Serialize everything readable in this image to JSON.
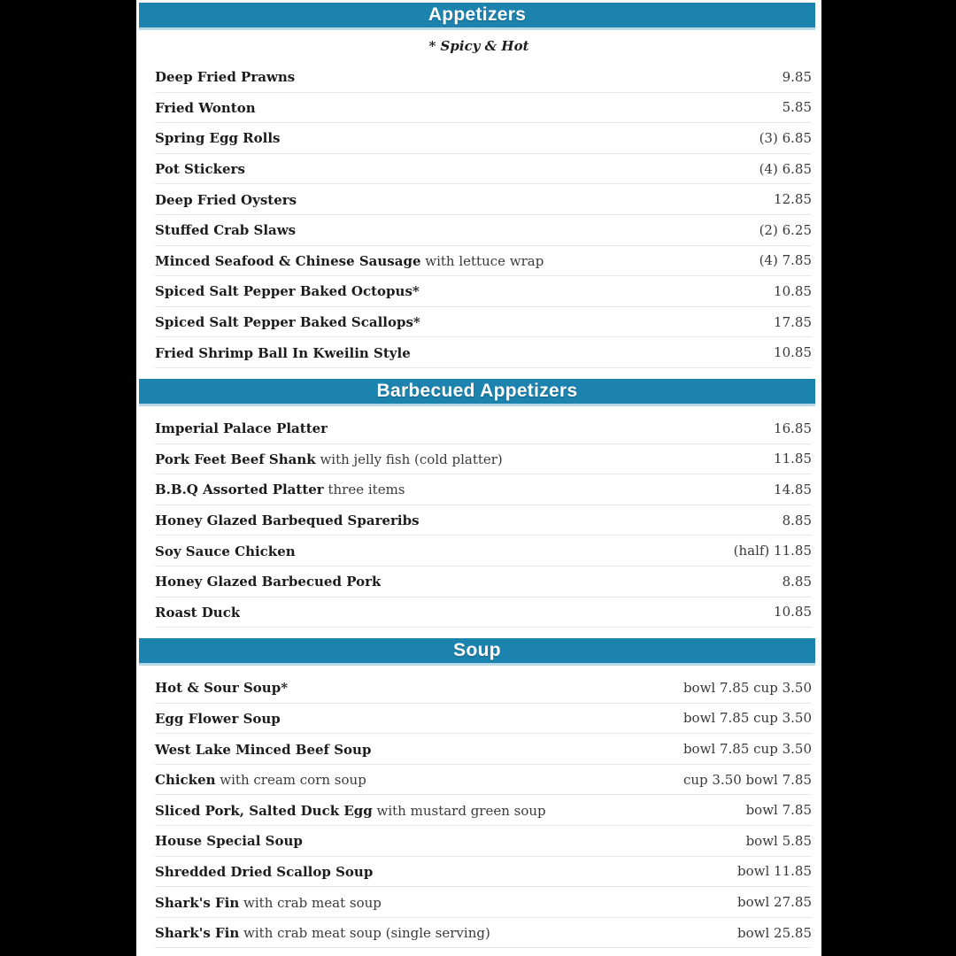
{
  "page": {
    "note": "* Spicy & Hot",
    "colors": {
      "background": "#000000",
      "panel": "#ffffff",
      "section_header_bg": "#1c82ae",
      "section_header_border": "#b9d8e5",
      "section_header_text": "#ffffff",
      "item_name": "#1c1c1c",
      "item_desc": "#3a3a3a",
      "item_price": "#383838",
      "divider": "#e2e9ed"
    }
  },
  "sections": [
    {
      "title": "Appetizers",
      "show_note": true,
      "items": [
        {
          "name": "Deep Fried Prawns",
          "desc": "",
          "price": "9.85"
        },
        {
          "name": "Fried Wonton",
          "desc": "",
          "price": "5.85"
        },
        {
          "name": "Spring Egg Rolls",
          "desc": "",
          "price": "(3) 6.85"
        },
        {
          "name": "Pot Stickers",
          "desc": "",
          "price": "(4) 6.85"
        },
        {
          "name": "Deep Fried Oysters",
          "desc": "",
          "price": "12.85"
        },
        {
          "name": "Stuffed Crab Slaws",
          "desc": "",
          "price": "(2) 6.25"
        },
        {
          "name": "Minced Seafood & Chinese Sausage",
          "desc": "with lettuce wrap",
          "price": "(4) 7.85"
        },
        {
          "name": "Spiced Salt Pepper Baked Octopus*",
          "desc": "",
          "price": "10.85"
        },
        {
          "name": "Spiced Salt Pepper Baked Scallops*",
          "desc": "",
          "price": "17.85"
        },
        {
          "name": "Fried Shrimp Ball In Kweilin Style",
          "desc": "",
          "price": "10.85"
        }
      ]
    },
    {
      "title": "Barbecued Appetizers",
      "show_note": false,
      "items": [
        {
          "name": "Imperial Palace Platter",
          "desc": "",
          "price": "16.85"
        },
        {
          "name": "Pork Feet Beef Shank",
          "desc": "with jelly fish (cold platter)",
          "price": "11.85"
        },
        {
          "name": "B.B.Q Assorted Platter",
          "desc": "three items",
          "price": "14.85"
        },
        {
          "name": "Honey Glazed Barbequed Spareribs",
          "desc": "",
          "price": "8.85"
        },
        {
          "name": "Soy Sauce Chicken",
          "desc": "",
          "price": "(half) 11.85"
        },
        {
          "name": "Honey Glazed Barbecued Pork",
          "desc": "",
          "price": "8.85"
        },
        {
          "name": "Roast Duck",
          "desc": "",
          "price": "10.85"
        }
      ]
    },
    {
      "title": "Soup",
      "show_note": false,
      "items": [
        {
          "name": "Hot & Sour Soup*",
          "desc": "",
          "price": "bowl 7.85 cup 3.50"
        },
        {
          "name": "Egg Flower Soup",
          "desc": "",
          "price": "bowl 7.85 cup 3.50"
        },
        {
          "name": "West Lake Minced Beef Soup",
          "desc": "",
          "price": "bowl 7.85 cup 3.50"
        },
        {
          "name": "Chicken",
          "desc": "with cream corn soup",
          "price": "cup 3.50 bowl 7.85"
        },
        {
          "name": "Sliced Pork, Salted Duck Egg",
          "desc": "with mustard green soup",
          "price": "bowl 7.85"
        },
        {
          "name": "House Special Soup",
          "desc": "",
          "price": "bowl 5.85"
        },
        {
          "name": "Shredded Dried Scallop Soup",
          "desc": "",
          "price": "bowl 11.85"
        },
        {
          "name": "Shark's Fin",
          "desc": "with crab meat soup",
          "price": "bowl 27.85"
        },
        {
          "name": "Shark's Fin",
          "desc": "with crab meat soup (single serving)",
          "price": "bowl 25.85"
        }
      ]
    }
  ]
}
